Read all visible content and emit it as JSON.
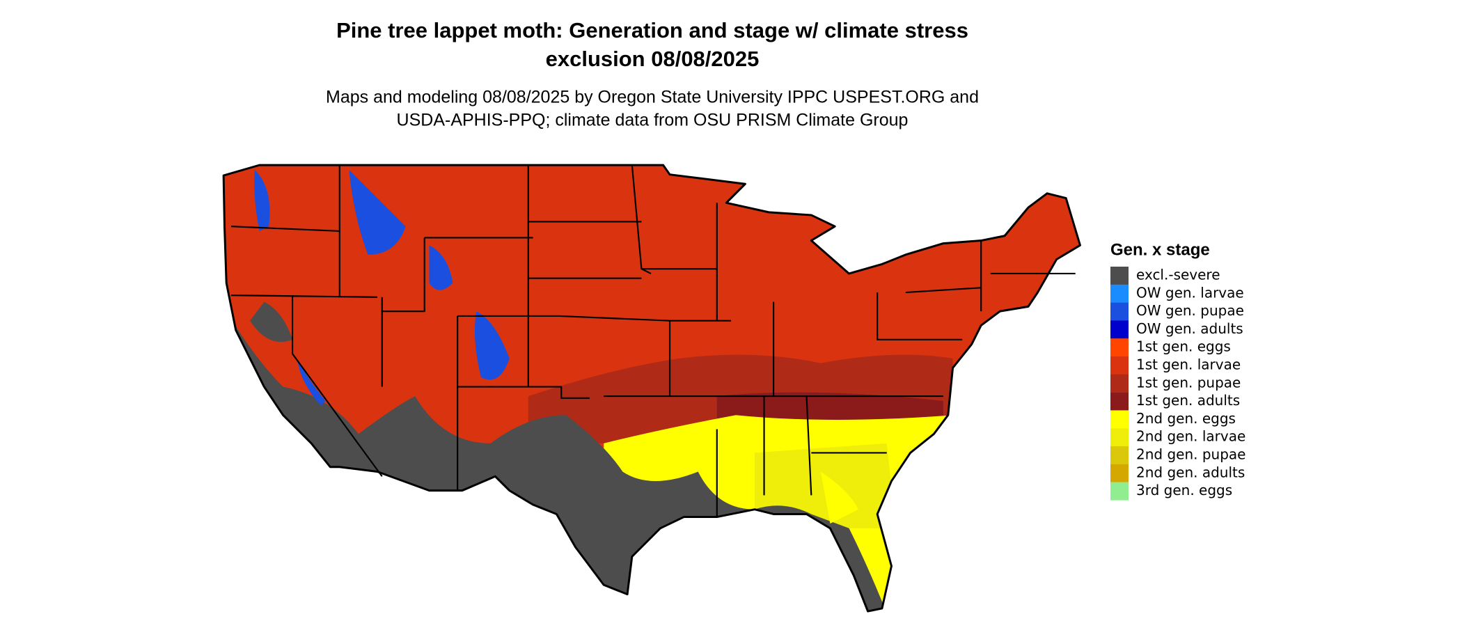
{
  "header": {
    "title": [
      "Pine tree lappet moth: Generation and stage w/ climate stress",
      "exclusion 08/08/2025"
    ],
    "subtitle": [
      "Maps and modeling 08/08/2025 by Oregon State University IPPC USPEST.ORG and",
      "USDA-APHIS-PPQ; climate data from OSU PRISM Climate Group"
    ]
  },
  "legend": {
    "title": "Gen. x stage",
    "items": [
      {
        "label": "excl.-severe",
        "color": "#4d4d4d"
      },
      {
        "label": "OW gen. larvae",
        "color": "#1a8cff"
      },
      {
        "label": "OW gen. pupae",
        "color": "#1a4fe0"
      },
      {
        "label": "OW gen. adults",
        "color": "#0000cc"
      },
      {
        "label": "1st gen. eggs",
        "color": "#ff4500"
      },
      {
        "label": "1st gen. larvae",
        "color": "#d9340f"
      },
      {
        "label": "1st gen. pupae",
        "color": "#b02a18"
      },
      {
        "label": "1st gen. adults",
        "color": "#8b1a1a"
      },
      {
        "label": "2nd gen. eggs",
        "color": "#ffff00"
      },
      {
        "label": "2nd gen. larvae",
        "color": "#eeee0a"
      },
      {
        "label": "2nd gen. pupae",
        "color": "#dcc80a"
      },
      {
        "label": "2nd gen. adults",
        "color": "#d4a800"
      },
      {
        "label": "3rd gen. eggs",
        "color": "#90ee90"
      }
    ]
  }
}
